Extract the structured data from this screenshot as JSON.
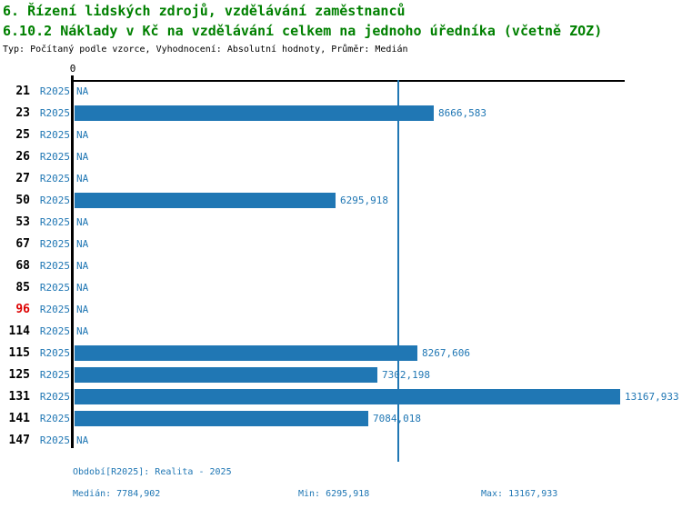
{
  "header": {
    "title": "6. Řízení lidských zdrojů, vzdělávání zaměstnanců",
    "subtitle": "6.10.2 Náklady v Kč na vzdělávání celkem na jednoho úředníka (včetně ZOZ)",
    "meta": "Typ: Počítaný podle vzorce, Vyhodnocení: Absolutní hodnoty, Průměr: Medián"
  },
  "axis": {
    "zero_label": "0"
  },
  "colors": {
    "bar_blue": "#2077b4",
    "title_green": "#008000",
    "highlight_red": "#dd0000",
    "axis_black": "#000000"
  },
  "chart_data": {
    "type": "bar",
    "orientation": "horizontal",
    "title": "6.10.2 Náklady v Kč na vzdělávání celkem na jednoho úředníka (včetně ZOZ)",
    "series_label": "R2025",
    "categories": [
      "21",
      "23",
      "25",
      "26",
      "27",
      "50",
      "53",
      "67",
      "68",
      "85",
      "96",
      "114",
      "115",
      "125",
      "131",
      "141",
      "147"
    ],
    "values": [
      null,
      8666.583,
      null,
      null,
      null,
      6295.918,
      null,
      null,
      null,
      null,
      null,
      null,
      8267.606,
      7302.198,
      13167.933,
      7084.018,
      null
    ],
    "value_labels": [
      "NA",
      "8666,583",
      "NA",
      "NA",
      "NA",
      "6295,918",
      "NA",
      "NA",
      "NA",
      "NA",
      "NA",
      "NA",
      "8267,606",
      "7302,198",
      "13167,933",
      "7084,018",
      "NA"
    ],
    "na_label": "NA",
    "highlighted_category": "96",
    "xlim": [
      0,
      13167.933
    ],
    "median_value": 7784.902,
    "grid": false,
    "legend": false
  },
  "footer": {
    "period": "Období[R2025]: Realita - 2025",
    "median": "Medián: 7784,902",
    "min": "Min: 6295,918",
    "max": "Max: 13167,933"
  }
}
